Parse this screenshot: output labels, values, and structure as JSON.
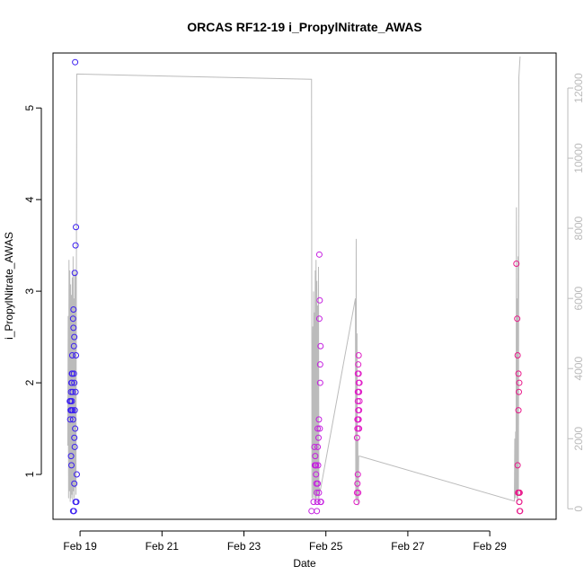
{
  "chart_data": {
    "type": "scatter",
    "title": "ORCAS RF12-19 i_PropylNitrate_AWAS",
    "xlabel": "Date",
    "ylabel": "i_PropylNitrate_AWAS",
    "x_unit": "days (February, 2016)",
    "xlim": [
      18.34,
      30.62
    ],
    "ylim": [
      0.51,
      5.6
    ],
    "y2lim": [
      -300,
      13000
    ],
    "x_ticks": [
      {
        "value": 19,
        "label": "Feb 19"
      },
      {
        "value": 21,
        "label": "Feb 21"
      },
      {
        "value": 23,
        "label": "Feb 23"
      },
      {
        "value": 25,
        "label": "Feb 25"
      },
      {
        "value": 27,
        "label": "Feb 27"
      },
      {
        "value": 29,
        "label": "Feb 29"
      }
    ],
    "y_ticks": [
      1,
      2,
      3,
      4,
      5
    ],
    "y2_ticks": [
      0,
      2000,
      4000,
      6000,
      8000,
      10000,
      12000
    ],
    "grid": false,
    "colors": {
      "rf12": "#3b1ff0",
      "rf13": "#7a22e8",
      "rf17": "#c51ee0",
      "rf18": "#e01fc6",
      "rf19": "#e81a8a",
      "altitude_line": "#bbbbbb"
    },
    "series": [
      {
        "color_key": "rf12",
        "points": [
          [
            18.75,
            1.8
          ],
          [
            18.77,
            1.7
          ],
          [
            18.78,
            1.9
          ],
          [
            18.76,
            1.6
          ],
          [
            18.79,
            1.7
          ],
          [
            18.8,
            2.0
          ],
          [
            18.81,
            2.1
          ],
          [
            18.8,
            1.8
          ],
          [
            18.82,
            1.9
          ],
          [
            18.78,
            1.2
          ],
          [
            18.79,
            1.1
          ],
          [
            18.81,
            2.3
          ],
          [
            18.83,
            2.7
          ],
          [
            18.84,
            2.8
          ],
          [
            18.85,
            2.4
          ],
          [
            18.86,
            2.5
          ],
          [
            18.84,
            2.6
          ],
          [
            18.85,
            2.1
          ],
          [
            18.86,
            2.0
          ],
          [
            18.83,
            1.6
          ],
          [
            18.87,
            1.7
          ],
          [
            18.86,
            1.4
          ],
          [
            18.88,
            1.5
          ],
          [
            18.87,
            1.3
          ],
          [
            18.89,
            0.7
          ],
          [
            18.85,
            0.6
          ],
          [
            18.83,
            0.6
          ],
          [
            18.86,
            0.9
          ],
          [
            18.87,
            3.2
          ],
          [
            18.89,
            3.5
          ],
          [
            18.9,
            3.7
          ],
          [
            18.89,
            1.9
          ],
          [
            18.9,
            2.3
          ],
          [
            18.91,
            0.7
          ],
          [
            18.92,
            1.0
          ],
          [
            18.88,
            5.5
          ],
          [
            18.8,
            2.1
          ],
          [
            18.79,
            2.0
          ],
          [
            18.77,
            1.8
          ],
          [
            18.82,
            1.7
          ]
        ]
      },
      {
        "color_key": "rf17",
        "points": [
          [
            24.65,
            0.6
          ],
          [
            24.7,
            0.7
          ],
          [
            24.72,
            1.3
          ],
          [
            24.73,
            1.1
          ],
          [
            24.74,
            1.2
          ],
          [
            24.75,
            1.1
          ],
          [
            24.76,
            1.0
          ],
          [
            24.77,
            0.9
          ],
          [
            24.78,
            0.6
          ],
          [
            24.78,
            0.8
          ],
          [
            24.79,
            0.7
          ],
          [
            24.8,
            1.5
          ],
          [
            24.8,
            1.3
          ],
          [
            24.81,
            1.1
          ],
          [
            24.82,
            1.4
          ],
          [
            24.83,
            0.8
          ],
          [
            24.83,
            1.6
          ],
          [
            24.84,
            2.7
          ],
          [
            24.85,
            2.9
          ],
          [
            24.84,
            3.4
          ],
          [
            24.86,
            2.2
          ],
          [
            24.87,
            2.4
          ],
          [
            24.86,
            2.0
          ],
          [
            24.85,
            1.5
          ],
          [
            24.87,
            0.7
          ],
          [
            24.88,
            0.7
          ],
          [
            24.8,
            0.9
          ],
          [
            24.76,
            1.1
          ]
        ]
      },
      {
        "color_key": "rf18",
        "points": [
          [
            25.75,
            0.7
          ],
          [
            25.76,
            0.8
          ],
          [
            25.77,
            0.9
          ],
          [
            25.78,
            1.0
          ],
          [
            25.76,
            1.4
          ],
          [
            25.77,
            1.5
          ],
          [
            25.78,
            1.6
          ],
          [
            25.79,
            1.7
          ],
          [
            25.78,
            1.8
          ],
          [
            25.79,
            1.9
          ],
          [
            25.8,
            2.0
          ],
          [
            25.78,
            2.1
          ],
          [
            25.79,
            2.2
          ],
          [
            25.8,
            2.3
          ],
          [
            25.81,
            1.5
          ],
          [
            25.8,
            1.6
          ],
          [
            25.81,
            1.7
          ],
          [
            25.82,
            1.8
          ],
          [
            25.81,
            1.9
          ],
          [
            25.82,
            2.0
          ],
          [
            25.79,
            0.8
          ],
          [
            25.8,
            1.5
          ],
          [
            25.77,
            1.6
          ],
          [
            25.78,
            1.9
          ],
          [
            25.8,
            2.1
          ]
        ]
      },
      {
        "color_key": "rf19",
        "points": [
          [
            29.65,
            3.3
          ],
          [
            29.67,
            2.7
          ],
          [
            29.68,
            2.3
          ],
          [
            29.7,
            2.1
          ],
          [
            29.71,
            1.9
          ],
          [
            29.72,
            2.0
          ],
          [
            29.7,
            1.7
          ],
          [
            29.68,
            1.1
          ],
          [
            29.69,
            0.8
          ],
          [
            29.71,
            0.8
          ],
          [
            29.73,
            0.8
          ],
          [
            29.72,
            0.7
          ],
          [
            29.73,
            0.6
          ],
          [
            29.74,
            0.6
          ],
          [
            29.72,
            0.7
          ]
        ]
      }
    ],
    "altitude_trace": {
      "color_key": "altitude_line",
      "points": [
        [
          18.7,
          1800
        ],
        [
          18.71,
          5500
        ],
        [
          18.72,
          300
        ],
        [
          18.73,
          7100
        ],
        [
          18.74,
          500
        ],
        [
          18.75,
          6800
        ],
        [
          18.76,
          200
        ],
        [
          18.77,
          6400
        ],
        [
          18.78,
          300
        ],
        [
          18.79,
          6100
        ],
        [
          18.8,
          400
        ],
        [
          18.81,
          6600
        ],
        [
          18.82,
          250
        ],
        [
          18.83,
          7200
        ],
        [
          18.84,
          500
        ],
        [
          18.85,
          6000
        ],
        [
          18.86,
          300
        ],
        [
          18.87,
          6800
        ],
        [
          18.88,
          600
        ],
        [
          18.89,
          6700
        ],
        [
          18.9,
          400
        ],
        [
          18.92,
          12400
        ],
        [
          24.65,
          12250
        ],
        [
          24.66,
          300
        ],
        [
          24.68,
          5200
        ],
        [
          24.69,
          300
        ],
        [
          24.7,
          6200
        ],
        [
          24.71,
          400
        ],
        [
          24.72,
          5600
        ],
        [
          24.73,
          300
        ],
        [
          24.74,
          6800
        ],
        [
          24.75,
          200
        ],
        [
          24.76,
          7100
        ],
        [
          24.77,
          300
        ],
        [
          24.78,
          6500
        ],
        [
          24.79,
          400
        ],
        [
          24.8,
          5800
        ],
        [
          24.81,
          300
        ],
        [
          24.82,
          6900
        ],
        [
          24.83,
          200
        ],
        [
          24.84,
          600
        ],
        [
          24.86,
          500
        ],
        [
          25.72,
          6000
        ],
        [
          25.73,
          300
        ],
        [
          25.74,
          7700
        ],
        [
          25.75,
          200
        ],
        [
          25.76,
          5000
        ],
        [
          25.77,
          300
        ],
        [
          25.78,
          2000
        ],
        [
          25.79,
          100
        ],
        [
          25.8,
          1500
        ],
        [
          25.83,
          1500
        ],
        [
          29.6,
          220
        ],
        [
          29.61,
          2000
        ],
        [
          29.62,
          300
        ],
        [
          29.63,
          2200
        ],
        [
          29.64,
          400
        ],
        [
          29.65,
          8600
        ],
        [
          29.66,
          300
        ],
        [
          29.67,
          6000
        ],
        [
          29.68,
          200
        ],
        [
          29.69,
          7200
        ],
        [
          29.7,
          400
        ],
        [
          29.71,
          12300
        ],
        [
          29.74,
          12900
        ]
      ]
    }
  }
}
